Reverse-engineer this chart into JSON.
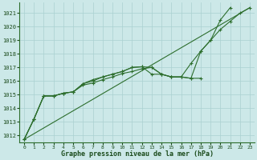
{
  "title": "Graphe pression niveau de la mer (hPa)",
  "bg_color": "#cce8e8",
  "grid_color": "#aad0d0",
  "line_color": "#2d6e2d",
  "text_color": "#1a4a1a",
  "ylim": [
    1011.5,
    1021.8
  ],
  "xlim": [
    -0.5,
    23.5
  ],
  "yticks": [
    1012,
    1013,
    1014,
    1015,
    1016,
    1017,
    1018,
    1019,
    1020,
    1021
  ],
  "xticks": [
    0,
    1,
    2,
    3,
    4,
    5,
    6,
    7,
    8,
    9,
    10,
    11,
    12,
    13,
    14,
    15,
    16,
    17,
    18,
    19,
    20,
    21,
    22,
    23
  ],
  "series1_x": [
    0,
    1,
    2,
    3,
    4,
    5,
    6,
    7,
    8,
    9,
    10,
    11,
    12,
    13,
    14,
    15,
    16,
    17,
    18,
    19,
    20,
    21,
    22,
    23
  ],
  "series1_y": [
    1011.7,
    1013.2,
    1014.9,
    1014.9,
    1015.1,
    1015.2,
    1015.7,
    1015.85,
    1016.1,
    1016.3,
    1016.55,
    1016.7,
    1016.9,
    1017.0,
    1016.5,
    1016.3,
    1016.3,
    1016.2,
    1018.2,
    1019.0,
    1019.8,
    1020.4,
    1021.0,
    1021.4
  ],
  "series2_x": [
    0,
    1,
    2,
    3,
    4,
    5,
    6,
    7,
    8,
    9,
    10,
    11,
    12,
    13,
    14,
    15,
    16,
    17,
    18,
    19,
    20,
    21
  ],
  "series2_y": [
    1011.7,
    1013.2,
    1014.9,
    1014.9,
    1015.1,
    1015.2,
    1015.8,
    1016.0,
    1016.3,
    1016.5,
    1016.7,
    1017.0,
    1017.05,
    1017.0,
    1016.5,
    1016.3,
    1016.3,
    1017.3,
    1018.2,
    1019.0,
    1020.5,
    1021.4
  ],
  "series3_x": [
    0,
    1,
    2,
    3,
    4,
    5,
    6,
    7,
    8,
    9,
    10,
    11,
    12,
    13,
    14,
    15,
    16,
    17,
    18
  ],
  "series3_y": [
    1011.7,
    1013.2,
    1014.9,
    1014.9,
    1015.1,
    1015.2,
    1015.8,
    1016.1,
    1016.3,
    1016.5,
    1016.7,
    1017.0,
    1017.05,
    1016.5,
    1016.5,
    1016.3,
    1016.3,
    1016.2,
    1016.2
  ],
  "series4_x": [
    0,
    23
  ],
  "series4_y": [
    1011.7,
    1021.4
  ]
}
